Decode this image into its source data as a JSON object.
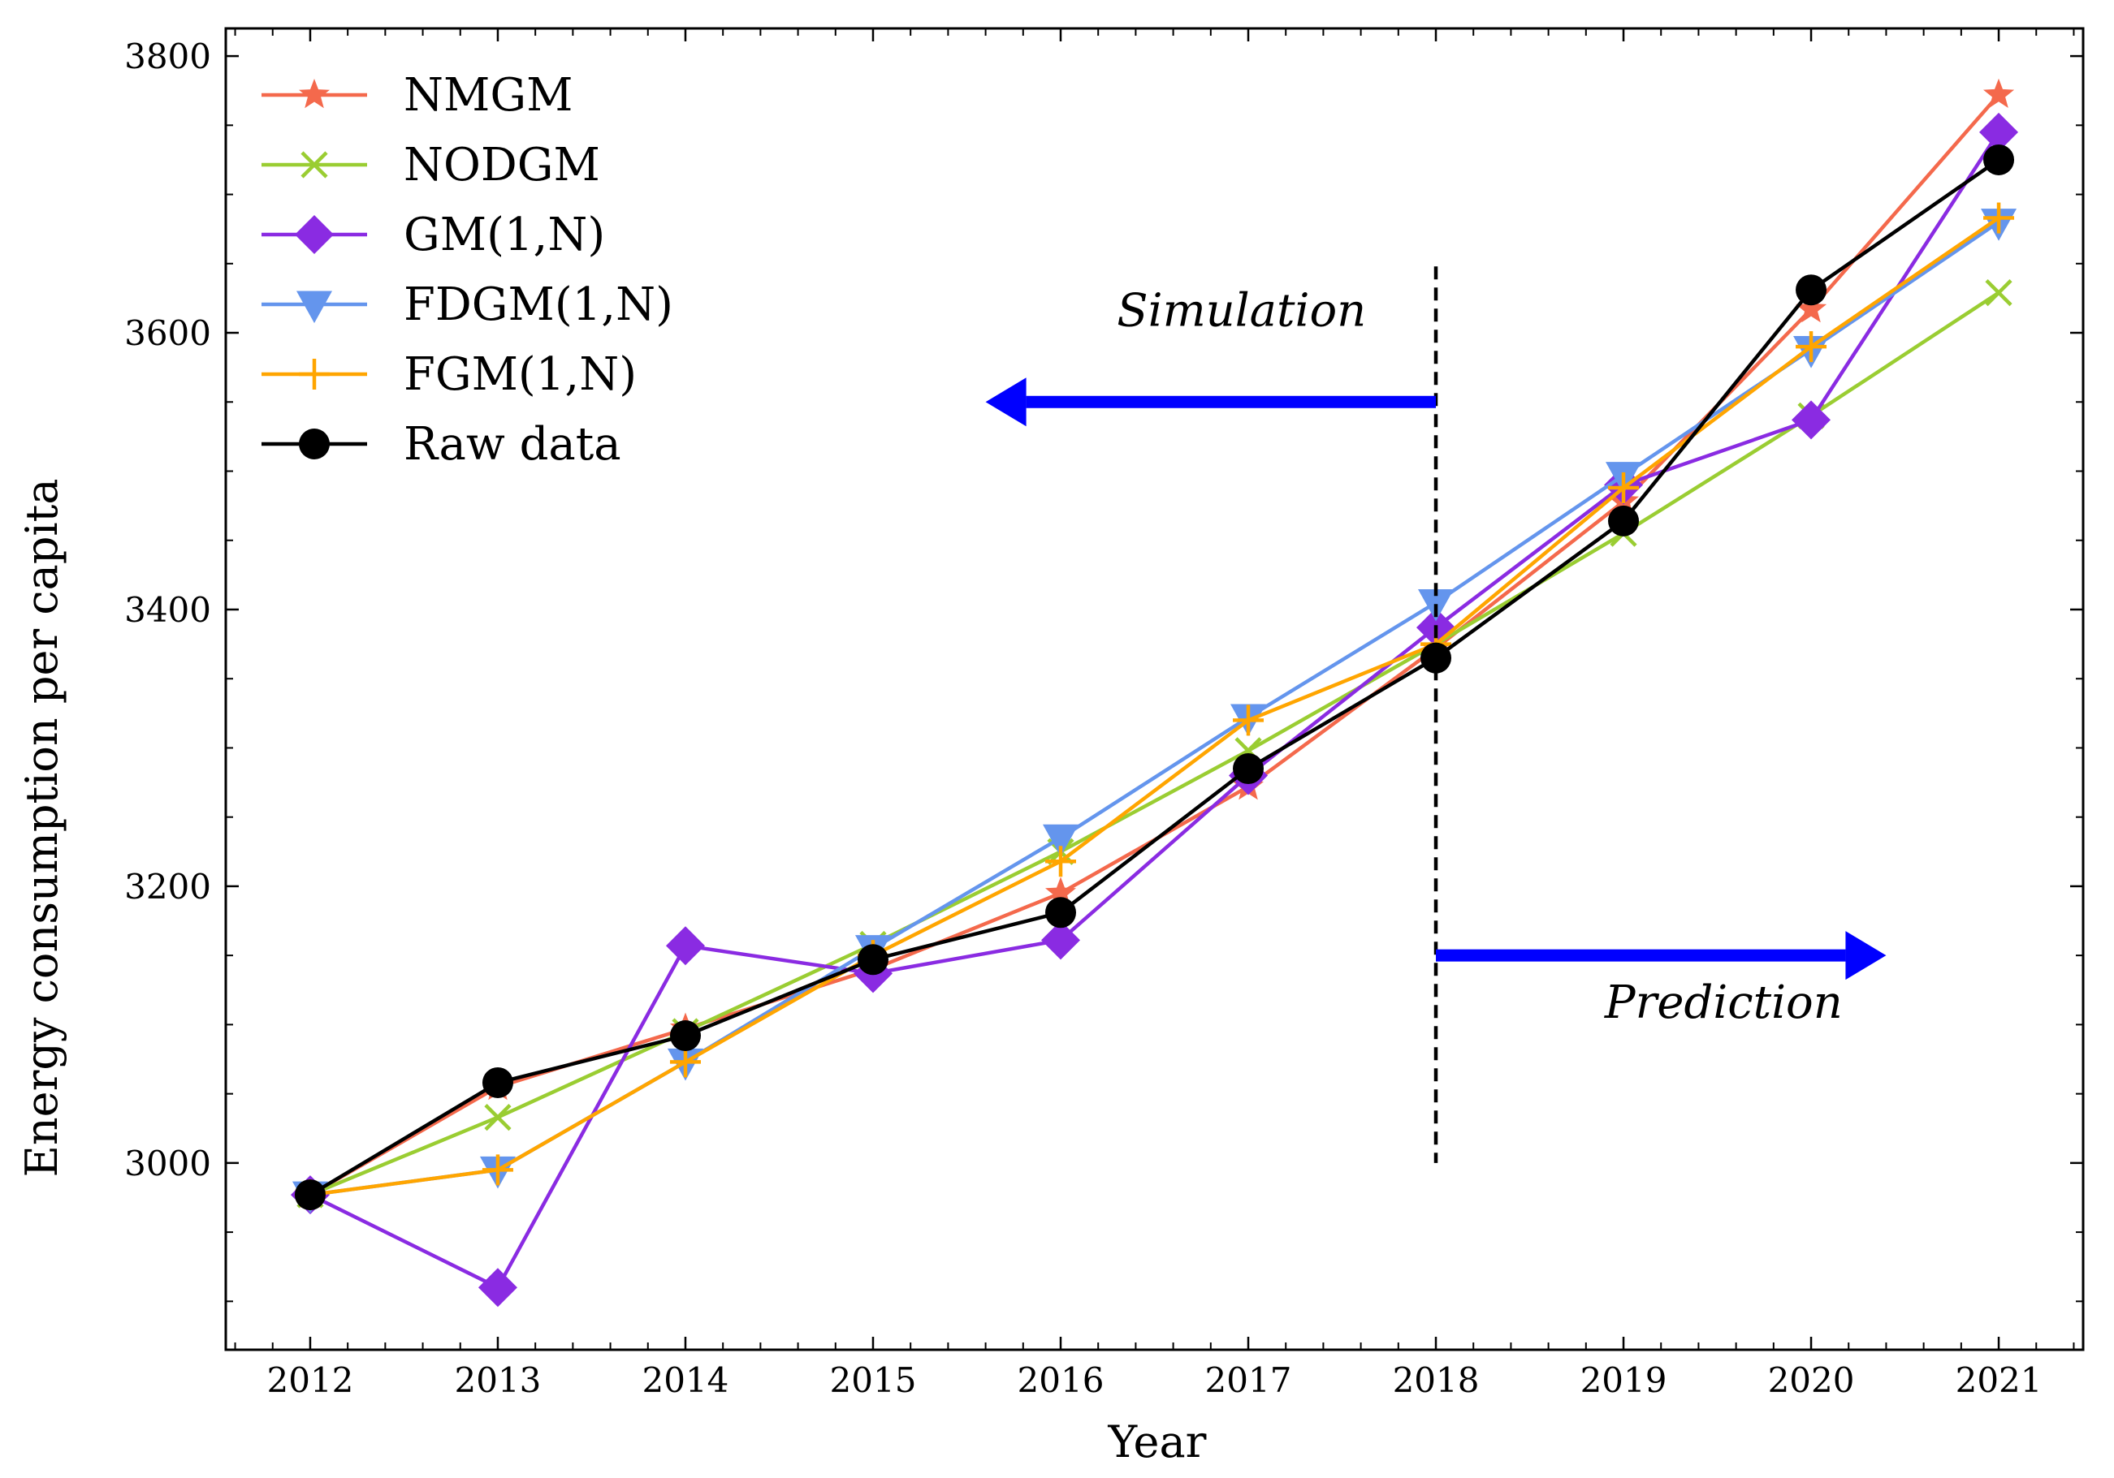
{
  "chart_data": {
    "type": "line",
    "title": "",
    "xlabel": "Year",
    "ylabel": "Energy consumption per capita",
    "xlim": [
      2011.55,
      2021.45
    ],
    "ylim": [
      2865,
      3820
    ],
    "x_ticks": [
      2012,
      2013,
      2014,
      2015,
      2016,
      2017,
      2018,
      2019,
      2020,
      2021
    ],
    "y_ticks": [
      3000,
      3200,
      3400,
      3600,
      3800
    ],
    "y_minor_step": 50,
    "x": [
      2012,
      2013,
      2014,
      2015,
      2016,
      2017,
      2018,
      2019,
      2020,
      2021
    ],
    "legend_position": "top-left",
    "series": [
      {
        "name": "NMGM",
        "color": "#f4694c",
        "marker": "star",
        "values": [
          2977,
          3055,
          3097,
          3140,
          3195,
          3272,
          3372,
          3478,
          3617,
          3772
        ]
      },
      {
        "name": "NODGM",
        "color": "#9acd32",
        "marker": "x",
        "values": [
          2977,
          3033,
          3095,
          3158,
          3225,
          3298,
          3375,
          3455,
          3540,
          3629
        ]
      },
      {
        "name": "GM(1,N)",
        "color": "#8a2be2",
        "marker": "diamond",
        "values": [
          2977,
          2910,
          3157,
          3137,
          3161,
          3280,
          3387,
          3490,
          3537,
          3745
        ]
      },
      {
        "name": "FDGM(1,N)",
        "color": "#6495ed",
        "marker": "triangle-down",
        "values": [
          2977,
          2995,
          3073,
          3155,
          3235,
          3322,
          3405,
          3497,
          3588,
          3680
        ]
      },
      {
        "name": "FGM(1,N)",
        "color": "#ffa500",
        "marker": "plus",
        "values": [
          2977,
          2995,
          3073,
          3150,
          3218,
          3320,
          3375,
          3488,
          3590,
          3683
        ]
      },
      {
        "name": "Raw data",
        "color": "#000000",
        "marker": "circle",
        "values": [
          2977,
          3058,
          3092,
          3147,
          3181,
          3285,
          3365,
          3464,
          3631,
          3725
        ]
      }
    ],
    "divider": {
      "x": 2018,
      "y_from": 3000,
      "y_to": 3648
    },
    "annotations": [
      {
        "id": "simulation",
        "text": "Simulation",
        "text_x": 2016.3,
        "text_y": 3605,
        "arrow_from": [
          2018,
          3550
        ],
        "arrow_to": [
          2015.6,
          3550
        ],
        "arrow_color": "#0000ff"
      },
      {
        "id": "prediction",
        "text": "Prediction",
        "text_x": 2018.9,
        "text_y": 3105,
        "arrow_from": [
          2018,
          3150
        ],
        "arrow_to": [
          2020.4,
          3150
        ],
        "arrow_color": "#0000ff"
      }
    ]
  }
}
